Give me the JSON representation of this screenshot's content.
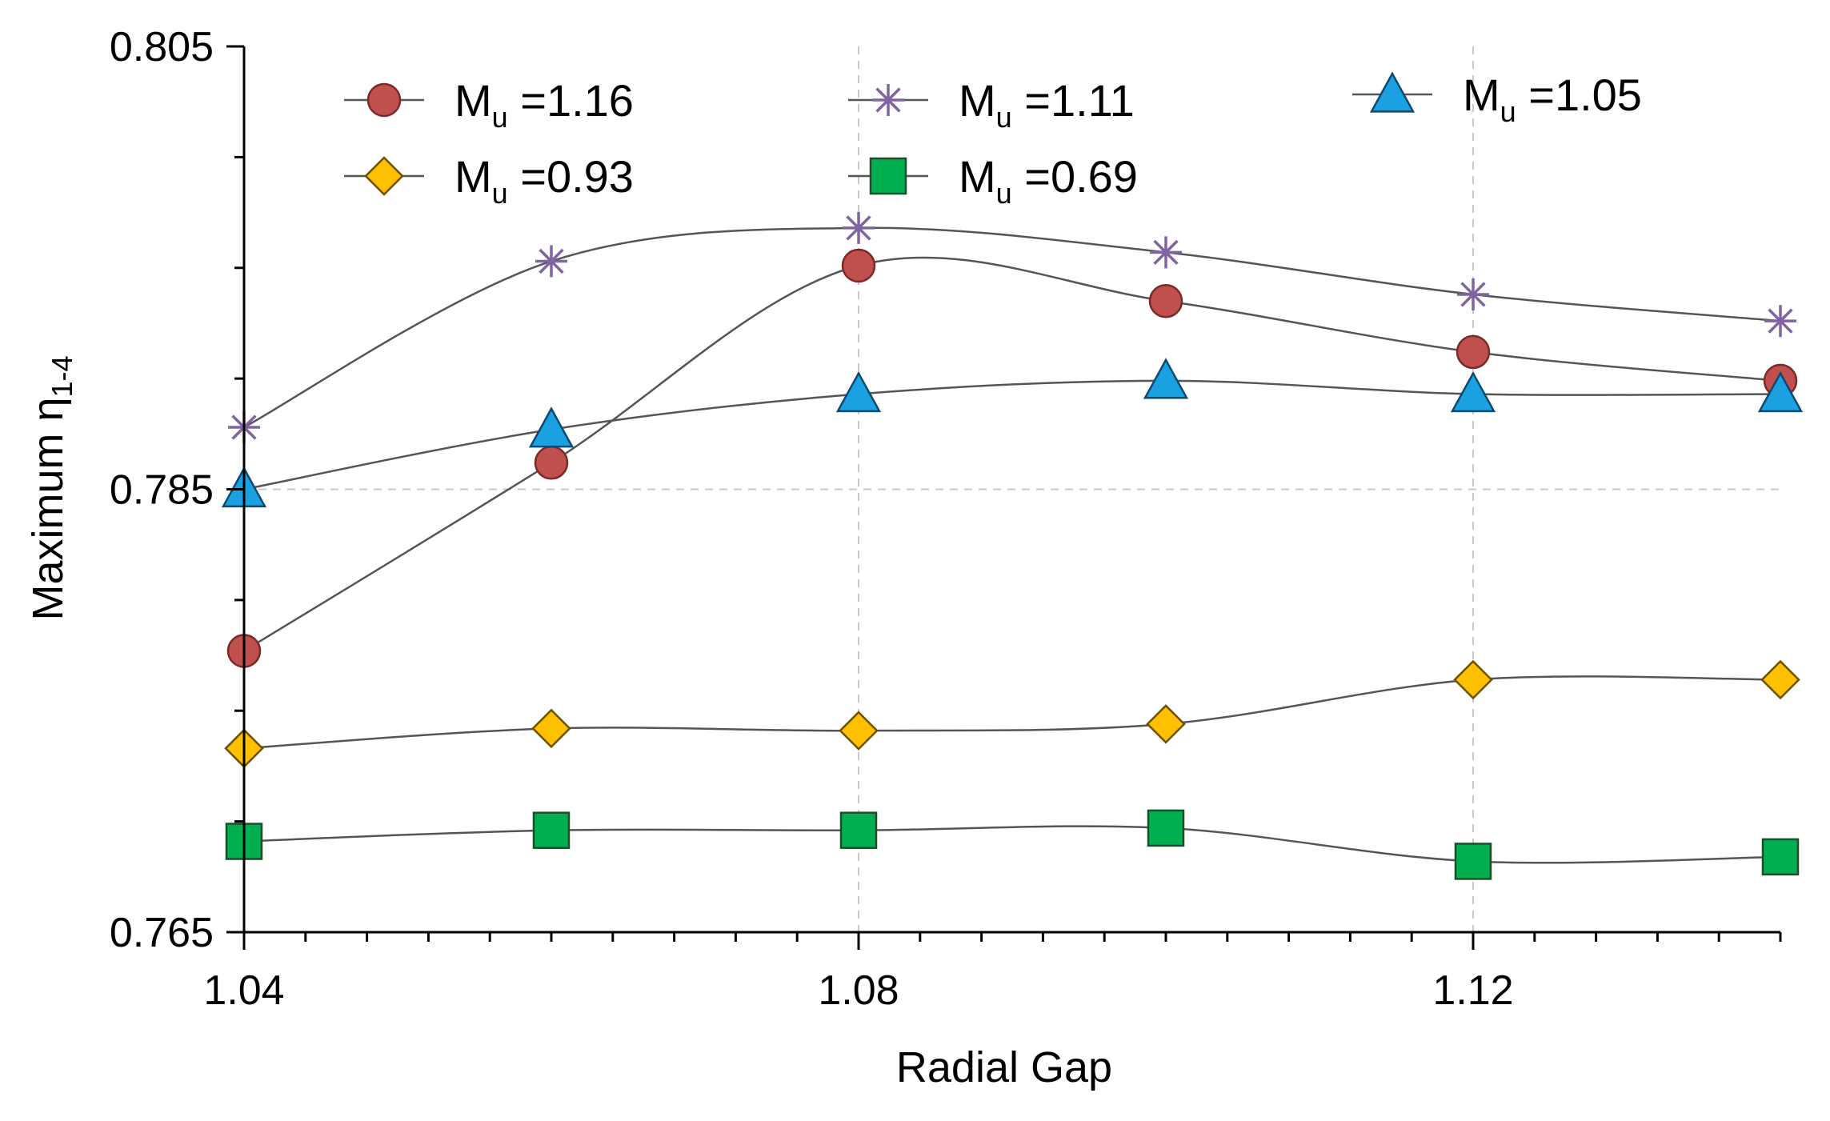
{
  "chart_data": {
    "type": "line",
    "title": "",
    "xlabel": "Radial Gap",
    "ylabel": {
      "prefix": "Maximum η",
      "subscript": "1-4"
    },
    "xlim": [
      1.04,
      1.14
    ],
    "ylim": [
      0.765,
      0.805
    ],
    "x_ticks": [
      1.04,
      1.08,
      1.12
    ],
    "x_tick_labels": [
      "1.04",
      "1.08",
      "1.12"
    ],
    "y_ticks": [
      0.765,
      0.785,
      0.805
    ],
    "y_tick_labels": [
      "0.765",
      "0.785",
      "0.805"
    ],
    "x": [
      1.04,
      1.06,
      1.08,
      1.1,
      1.12,
      1.14
    ],
    "grid": "dashed",
    "legend_position": "top",
    "series": [
      {
        "name": "M_u =1.16",
        "label_main": "M",
        "label_sub": "u",
        "label_rest": " =1.16",
        "marker": "circle",
        "color": "#c0504d",
        "values": [
          0.7777,
          0.7862,
          0.7951,
          0.7935,
          0.7912,
          0.7899
        ]
      },
      {
        "name": "M_u =1.11",
        "label_main": "M",
        "label_sub": "u",
        "label_rest": " =1.11",
        "marker": "star",
        "color": "#8064a2",
        "values": [
          0.7878,
          0.7953,
          0.7968,
          0.7957,
          0.7938,
          0.7926
        ]
      },
      {
        "name": "M_u =1.05",
        "label_main": "M",
        "label_sub": "u",
        "label_rest": " =1.05",
        "marker": "triangle",
        "color": "#1ba1e2",
        "values": [
          0.785,
          0.7877,
          0.7893,
          0.7899,
          0.7893,
          0.7893
        ]
      },
      {
        "name": "M_u =0.93",
        "label_main": "M",
        "label_sub": "u",
        "label_rest": " =0.93",
        "marker": "diamond",
        "color": "#ffc000",
        "values": [
          0.7733,
          0.7742,
          0.7741,
          0.7744,
          0.7764,
          0.7764
        ]
      },
      {
        "name": "M_u =0.69",
        "label_main": "M",
        "label_sub": "u",
        "label_rest": " =0.69",
        "marker": "square",
        "color": "#00b050",
        "values": [
          0.7691,
          0.7696,
          0.7696,
          0.7697,
          0.7682,
          0.7684
        ]
      }
    ]
  }
}
